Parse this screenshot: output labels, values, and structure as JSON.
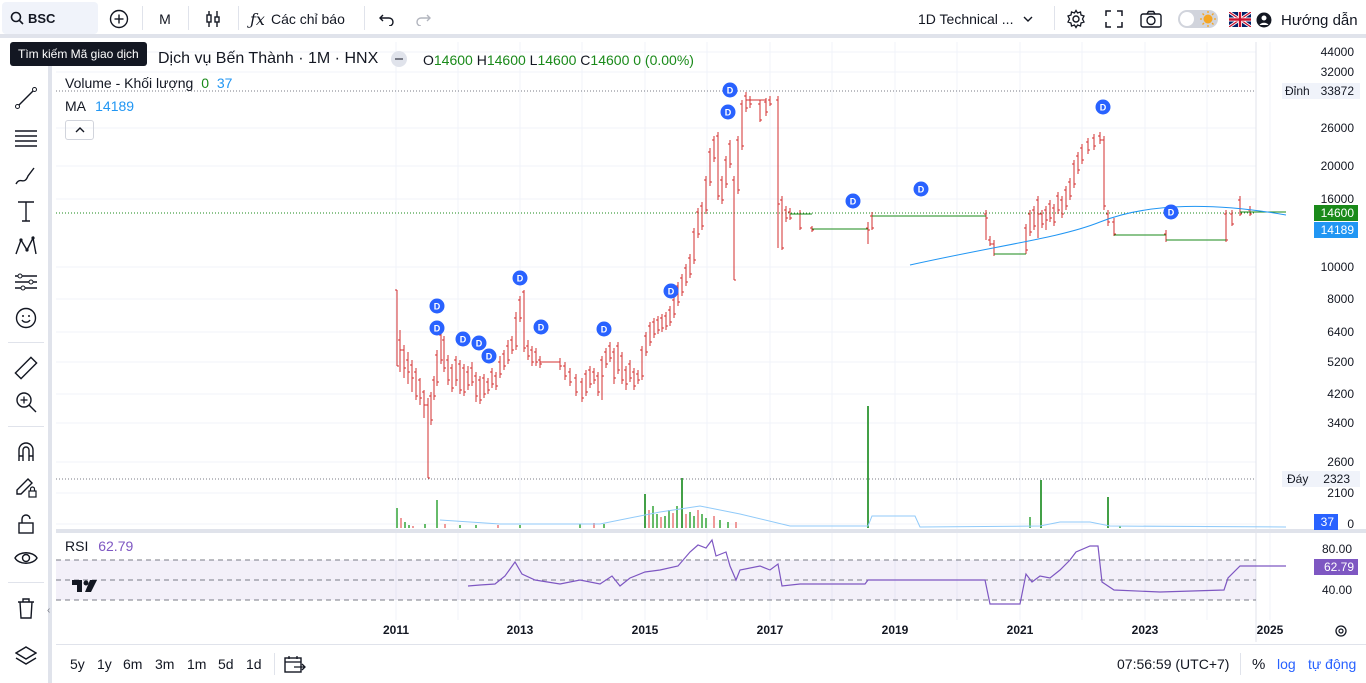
{
  "toolbar": {
    "symbol": "BSC",
    "interval": "M",
    "indicators_label": "Các chỉ báo",
    "layout_label": "1D Technical ...",
    "help_label": "Hướng dẫn",
    "search_tooltip": "Tìm kiếm Mã giao dịch"
  },
  "legend": {
    "title": "Dịch vụ Bến Thành · 1M · HNX",
    "o_label": "O",
    "o": "14600",
    "h_label": "H",
    "h": "14600",
    "l_label": "L",
    "l": "14600",
    "c_label": "C",
    "c": "14600",
    "change": "0 (0.00%)",
    "volume_label": "Volume - Khối lượng",
    "volume_v1": "0",
    "volume_v2": "37",
    "ma_label": "MA",
    "ma_value": "14189",
    "rsi_label": "RSI",
    "rsi_value": "62.79"
  },
  "price_axis": [
    "44000",
    "32000",
    "26000",
    "20000",
    "16000",
    "10000",
    "8000",
    "6400",
    "5200",
    "4200",
    "3400",
    "2600",
    "2100",
    "0"
  ],
  "price_axis_extra": {
    "top_label": "Đỉnh",
    "top_value": "33872",
    "bottom_label": "Đáy",
    "bottom_value": "2323",
    "last": "14600",
    "ma": "14189",
    "volume": "37"
  },
  "rsi_axis": [
    "80.00",
    "40.00"
  ],
  "rsi_last": "62.79",
  "time_axis": [
    "2011",
    "2013",
    "2015",
    "2017",
    "2019",
    "2021",
    "2023",
    "2025"
  ],
  "bottom": {
    "ranges": [
      "5y",
      "1y",
      "6m",
      "3m",
      "1m",
      "5d",
      "1d"
    ],
    "clock": "07:56:59 (UTC+7)",
    "pct": "%",
    "log": "log",
    "auto": "tự động"
  },
  "colors": {
    "up": "#089981",
    "down": "#f23645",
    "green": "#1a8a1a",
    "red": "#d22",
    "ma": "#2196f3",
    "rsi": "#7e57c2",
    "dividend": "#2962ff"
  },
  "dividend_marker": "D"
}
